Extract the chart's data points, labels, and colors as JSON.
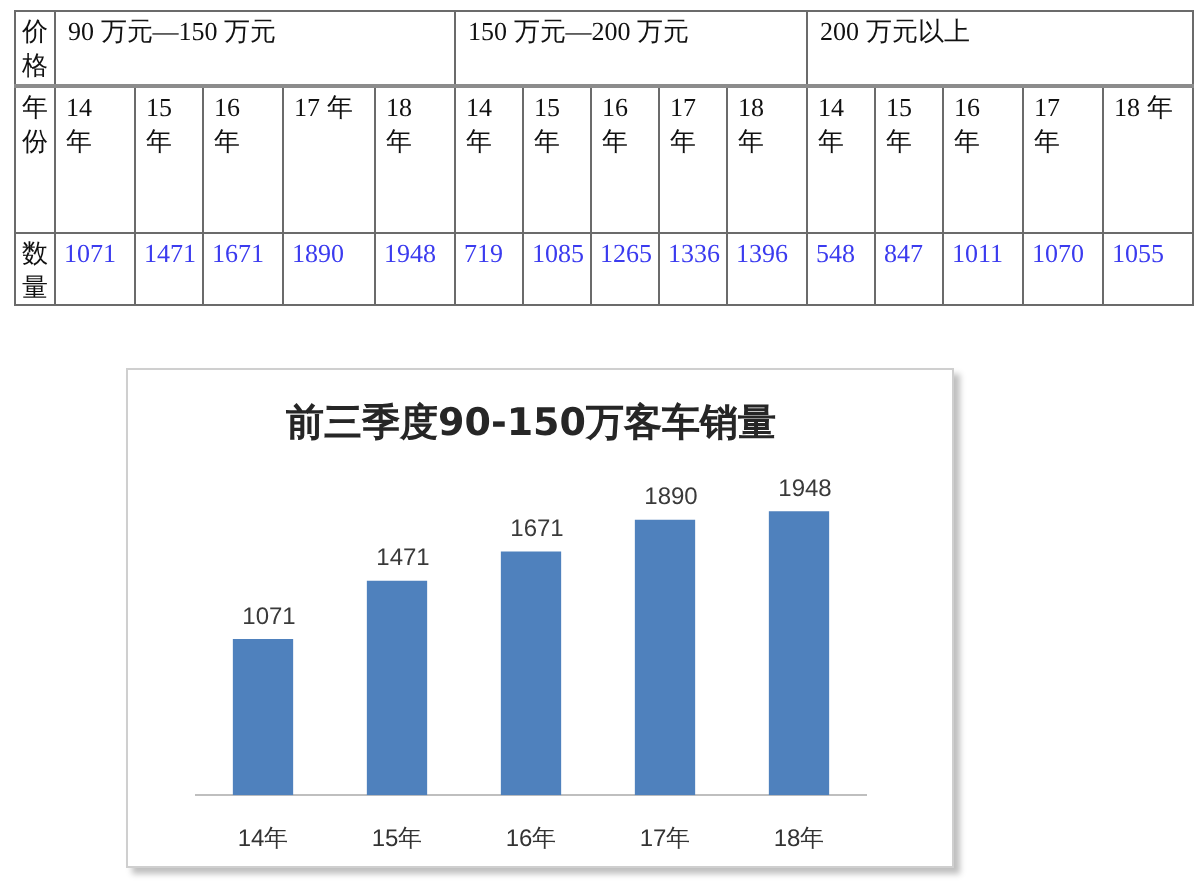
{
  "chart_data": [
    {
      "type": "heatmap",
      "title": "90 万元—150 万元",
      "xlabel": "年份",
      "annotations": [
        "价格"
      ],
      "categories": [
        "14 年",
        "15 年",
        "16 年",
        "17 年",
        "18 年"
      ],
      "y_categories": [
        "数量"
      ],
      "cells": [
        [
          1071,
          1471,
          1671,
          1890,
          1948
        ]
      ],
      "data_labels": true
    },
    {
      "type": "heatmap",
      "title": "150 万元—200 万元",
      "categories": [
        "14 年",
        "15 年",
        "16 年",
        "17 年",
        "18 年"
      ],
      "y_categories": [
        null
      ],
      "cells": [
        [
          719,
          1085,
          1265,
          1336,
          1396
        ]
      ],
      "data_labels": true,
      "tick_labels": "x"
    },
    {
      "type": "heatmap",
      "title": "200 万元以上",
      "categories": [
        "14 年",
        "15 年",
        "16 年",
        "17 年",
        "18 年"
      ],
      "y_categories": [
        null
      ],
      "cells": [
        [
          548,
          847,
          1011,
          1070,
          1055
        ]
      ],
      "data_labels": true,
      "tick_labels": "x"
    },
    {
      "type": "bar",
      "title": "前三季度90-150万客车销量",
      "categories": [
        "14年",
        "15年",
        "16年",
        "17年",
        "18年"
      ],
      "values": [
        1071,
        1471,
        1671,
        1890,
        1948
      ],
      "color": "#4f81bd",
      "data_labels": true,
      "tick_labels": "x"
    }
  ]
}
